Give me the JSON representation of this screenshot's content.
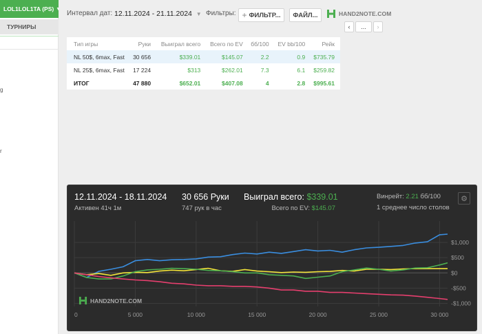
{
  "sidebar": {
    "player": "LOL1LOL1TA (PS)",
    "tab": "ТУРНИРЫ",
    "fragments": [
      "g",
      "r"
    ]
  },
  "toolbar": {
    "interval_label": "Интервал дат:",
    "date_range": "12.11.2024 - 21.11.2024",
    "filters_label": "Фильтры:",
    "filter_button": "ФИЛЬТР...",
    "file_button": "ФАЙЛ...",
    "logo_text": "HAND2NOTE.COM",
    "nav_prev": "‹",
    "nav_more": "...",
    "nav_next": "›"
  },
  "table": {
    "headers": [
      "Тип игры",
      "Руки",
      "Выиграл всего",
      "Всего по EV",
      "бб/100",
      "EV bb/100",
      "Рейк"
    ],
    "rows": [
      [
        "NL 50$, 6max, Fast",
        "30 656",
        "$339.01",
        "$145.07",
        "2.2",
        "0.9",
        "$735.79"
      ],
      [
        "NL 25$, 6max, Fast",
        "17 224",
        "$313",
        "$262.01",
        "7.3",
        "6.1",
        "$259.82"
      ],
      [
        "ИТОГ",
        "47 880",
        "$652.01",
        "$407.08",
        "4",
        "2.8",
        "$995.61"
      ]
    ]
  },
  "graph": {
    "date_range": "12.11.2024 - 18.11.2024",
    "active": "Активен 41ч 1м",
    "hands": "30 656 Руки",
    "hands_per_hour": "747 рук в час",
    "won_label": "Выиграл всего:",
    "won_value": "$339.01",
    "ev_label": "Всего по EV:",
    "ev_value": "$145.07",
    "winrate_label": "Винрейт:",
    "winrate_value": "2.21",
    "winrate_unit": "бб/100",
    "tables_avg": "1 среднее число столов",
    "logo_text": "HAND2NOTE.COM"
  },
  "chart_data": {
    "type": "line",
    "xlim": [
      0,
      30656
    ],
    "ylim": [
      -1100,
      1700
    ],
    "x_ticks": [
      0,
      5000,
      10000,
      15000,
      20000,
      25000,
      30000
    ],
    "x_tick_labels": [
      "0",
      "5 000",
      "10 000",
      "15 000",
      "20 000",
      "25 000",
      "30 000"
    ],
    "y_ticks": [
      1000,
      500,
      0,
      -500,
      -1000
    ],
    "y_tick_labels": [
      "$1,000",
      "$500",
      "$0",
      "-$500",
      "-$1,000"
    ],
    "grid": true,
    "series": [
      {
        "color": "#3a8ee0",
        "x": [
          0,
          1000,
          2000,
          3000,
          4000,
          5000,
          6000,
          7000,
          8000,
          9000,
          10000,
          11000,
          12000,
          13000,
          14000,
          15000,
          16000,
          17000,
          18000,
          19000,
          20000,
          21000,
          22000,
          23000,
          24000,
          25000,
          26000,
          27000,
          28000,
          29000,
          30000,
          30656
        ],
        "y": [
          0,
          -150,
          50,
          120,
          200,
          400,
          440,
          400,
          430,
          440,
          460,
          520,
          530,
          600,
          650,
          620,
          680,
          640,
          700,
          760,
          720,
          740,
          680,
          760,
          820,
          840,
          870,
          900,
          980,
          1020,
          1250,
          1270
        ]
      },
      {
        "color": "#f3e43a",
        "x": [
          0,
          1000,
          2000,
          3000,
          4000,
          5000,
          6000,
          7000,
          8000,
          9000,
          10000,
          11000,
          12000,
          13000,
          14000,
          15000,
          16000,
          17000,
          18000,
          19000,
          20000,
          21000,
          22000,
          23000,
          24000,
          25000,
          26000,
          27000,
          28000,
          29000,
          30000,
          30656
        ],
        "y": [
          0,
          -60,
          -20,
          -80,
          0,
          20,
          10,
          60,
          90,
          70,
          110,
          150,
          70,
          50,
          110,
          60,
          40,
          10,
          30,
          20,
          40,
          50,
          80,
          60,
          120,
          120,
          110,
          130,
          140,
          140,
          140,
          140
        ]
      },
      {
        "color": "#4caf50",
        "x": [
          0,
          1000,
          2000,
          3000,
          4000,
          5000,
          6000,
          7000,
          8000,
          9000,
          10000,
          11000,
          12000,
          13000,
          14000,
          15000,
          16000,
          17000,
          18000,
          19000,
          20000,
          21000,
          22000,
          23000,
          24000,
          25000,
          26000,
          27000,
          28000,
          29000,
          30000,
          30656
        ],
        "y": [
          0,
          -150,
          -200,
          -200,
          -100,
          40,
          100,
          120,
          150,
          140,
          120,
          80,
          70,
          40,
          0,
          0,
          -60,
          -80,
          -100,
          -180,
          -140,
          -100,
          40,
          100,
          160,
          120,
          60,
          100,
          160,
          170,
          260,
          330
        ]
      },
      {
        "color": "#e63f6e",
        "x": [
          0,
          1000,
          2000,
          3000,
          4000,
          5000,
          6000,
          7000,
          8000,
          9000,
          10000,
          11000,
          12000,
          13000,
          14000,
          15000,
          16000,
          17000,
          18000,
          19000,
          20000,
          21000,
          22000,
          23000,
          24000,
          25000,
          26000,
          27000,
          28000,
          29000,
          30000,
          30656
        ],
        "y": [
          0,
          -60,
          -120,
          -160,
          -200,
          -230,
          -250,
          -290,
          -340,
          -360,
          -400,
          -420,
          -420,
          -440,
          -440,
          -460,
          -500,
          -560,
          -560,
          -600,
          -600,
          -640,
          -640,
          -660,
          -680,
          -700,
          -720,
          -730,
          -760,
          -800,
          -840,
          -870
        ]
      }
    ]
  }
}
